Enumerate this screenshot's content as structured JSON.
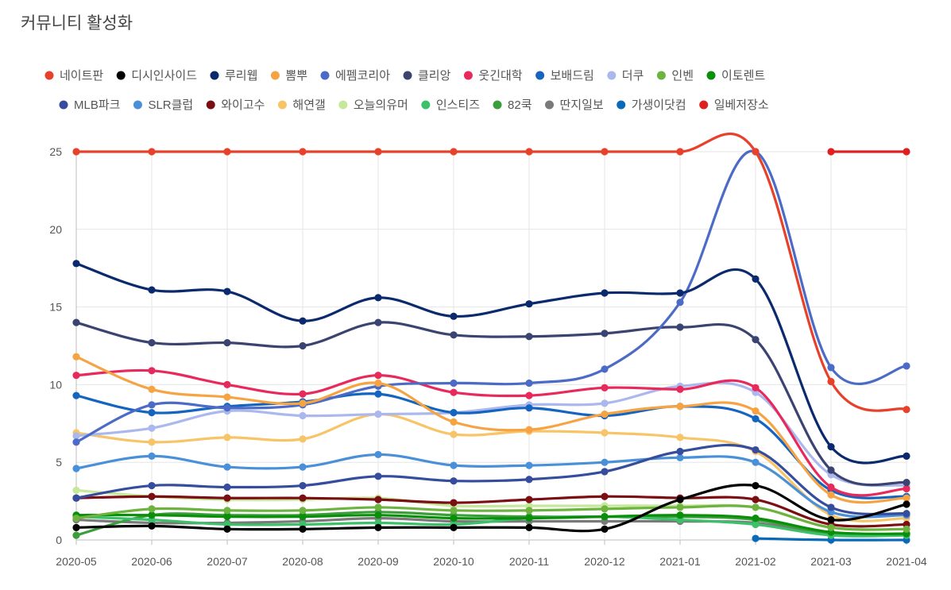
{
  "chart_data": {
    "type": "line",
    "title": "커뮤니티 활성화",
    "xlabel": "",
    "ylabel": "",
    "ylim": [
      0,
      25
    ],
    "yticks": [
      0,
      5,
      10,
      15,
      20,
      25
    ],
    "grid": true,
    "legend_position": "top",
    "x": [
      "2020-05",
      "2020-06",
      "2020-07",
      "2020-08",
      "2020-09",
      "2020-10",
      "2020-11",
      "2020-12",
      "2021-01",
      "2021-02",
      "2021-03",
      "2021-04"
    ],
    "series": [
      {
        "name": "네이트판",
        "color": "#e8412b",
        "values": [
          25,
          25,
          25,
          25,
          25,
          25,
          25,
          25,
          25,
          25,
          10.2,
          8.4
        ]
      },
      {
        "name": "디시인사이드",
        "color": "#000000",
        "values": [
          0.8,
          0.9,
          0.7,
          0.7,
          0.8,
          0.8,
          0.8,
          0.7,
          2.6,
          3.5,
          1.3,
          2.3
        ]
      },
      {
        "name": "루리웹",
        "color": "#0b2a6e",
        "values": [
          17.8,
          16.1,
          16.0,
          14.1,
          15.6,
          14.4,
          15.2,
          15.9,
          15.9,
          16.8,
          6.0,
          5.4
        ]
      },
      {
        "name": "뽐뿌",
        "color": "#f6a443",
        "values": [
          11.8,
          9.7,
          9.2,
          8.8,
          10.1,
          7.6,
          7.1,
          8.1,
          8.6,
          8.3,
          2.9,
          2.7
        ]
      },
      {
        "name": "에펨코리아",
        "color": "#4b6bc6",
        "values": [
          6.3,
          8.7,
          8.5,
          8.7,
          9.9,
          10.1,
          10.1,
          11.0,
          15.3,
          25.0,
          11.1,
          11.2
        ]
      },
      {
        "name": "클리앙",
        "color": "#3b4470",
        "values": [
          14.0,
          12.7,
          12.7,
          12.5,
          14.0,
          13.2,
          13.1,
          13.3,
          13.7,
          12.9,
          4.5,
          3.7
        ]
      },
      {
        "name": "웃긴대학",
        "color": "#e8295c",
        "values": [
          10.6,
          10.9,
          10.0,
          9.4,
          10.6,
          9.5,
          9.3,
          9.8,
          9.7,
          9.8,
          3.4,
          3.3
        ]
      },
      {
        "name": "보배드림",
        "color": "#1565c0",
        "values": [
          9.3,
          8.2,
          8.6,
          8.9,
          9.4,
          8.2,
          8.5,
          8.0,
          8.6,
          7.8,
          3.2,
          2.8
        ]
      },
      {
        "name": "더쿠",
        "color": "#aab8ee",
        "values": [
          6.7,
          7.2,
          8.3,
          8.0,
          8.1,
          8.2,
          8.7,
          8.8,
          9.9,
          9.5,
          4.2,
          3.5
        ]
      },
      {
        "name": "인벤",
        "color": "#6db33f",
        "values": [
          1.4,
          2.0,
          1.9,
          1.9,
          2.1,
          1.9,
          1.9,
          2.0,
          2.1,
          2.1,
          0.8,
          0.7
        ]
      },
      {
        "name": "이토렌트",
        "color": "#0a8f0a",
        "values": [
          1.6,
          1.6,
          1.5,
          1.5,
          1.6,
          1.4,
          1.4,
          1.5,
          1.6,
          1.4,
          0.5,
          0.4
        ]
      },
      {
        "name": "MLB파크",
        "color": "#354d9c",
        "values": [
          2.7,
          3.5,
          3.4,
          3.5,
          4.1,
          3.8,
          3.9,
          4.4,
          5.7,
          5.8,
          2.1,
          1.7
        ]
      },
      {
        "name": "SLR클럽",
        "color": "#4a90d9",
        "values": [
          4.6,
          5.4,
          4.7,
          4.7,
          5.5,
          4.8,
          4.8,
          5.0,
          5.3,
          5.0,
          1.8,
          1.6
        ]
      },
      {
        "name": "와이고수",
        "color": "#7b0e12",
        "values": [
          2.7,
          2.8,
          2.7,
          2.7,
          2.6,
          2.4,
          2.6,
          2.8,
          2.7,
          2.6,
          1.0,
          1.0
        ]
      },
      {
        "name": "해연갤",
        "color": "#f8c468",
        "values": [
          6.9,
          6.3,
          6.6,
          6.5,
          8.1,
          6.8,
          7.0,
          6.9,
          6.6,
          5.7,
          1.6,
          1.4
        ]
      },
      {
        "name": "오늘의유머",
        "color": "#c6e89a",
        "values": [
          3.2,
          2.8,
          2.6,
          2.6,
          2.7,
          2.2,
          2.2,
          2.2,
          2.2,
          2.1,
          0.8,
          0.7
        ]
      },
      {
        "name": "인스티즈",
        "color": "#3cc06a",
        "values": [
          1.5,
          1.3,
          1.0,
          1.0,
          1.1,
          1.0,
          1.4,
          1.5,
          1.3,
          1.0,
          0.3,
          0.3
        ]
      },
      {
        "name": "82쿡",
        "color": "#3a9e3a",
        "values": [
          0.3,
          1.6,
          1.6,
          1.6,
          1.8,
          1.6,
          1.5,
          1.5,
          1.5,
          1.3,
          0.4,
          0.4
        ]
      },
      {
        "name": "딴지일보",
        "color": "#7a7a7a",
        "values": [
          1.3,
          1.1,
          1.1,
          1.2,
          1.4,
          1.2,
          1.2,
          1.2,
          1.2,
          1.1,
          0.4,
          0.4
        ]
      },
      {
        "name": "가생이닷컴",
        "color": "#0a6ab8",
        "values": [
          null,
          null,
          null,
          null,
          null,
          null,
          null,
          null,
          null,
          0.1,
          0.0,
          0.0
        ]
      },
      {
        "name": "일베저장소",
        "color": "#e02020",
        "values": [
          null,
          null,
          null,
          null,
          null,
          null,
          null,
          null,
          null,
          null,
          25,
          25
        ]
      }
    ]
  }
}
